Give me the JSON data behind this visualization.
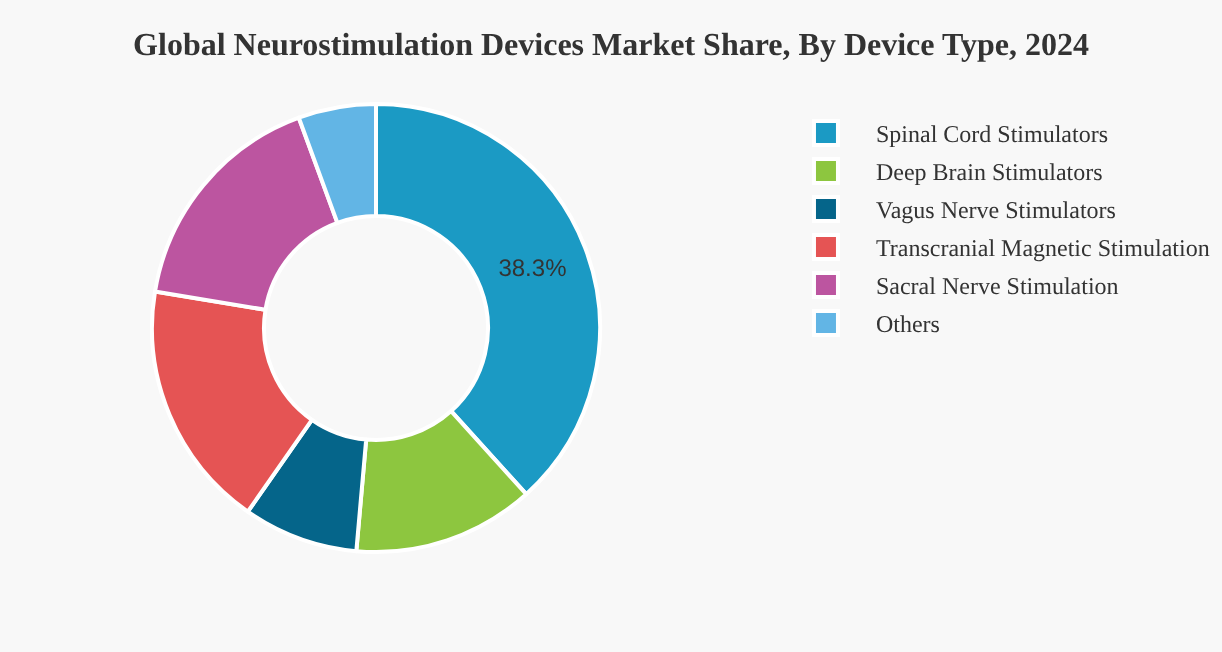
{
  "chart_data": {
    "type": "donut",
    "title": "Global Neurostimulation Devices Market Share, By Device Type, 2024",
    "categories": [
      "Spinal Cord Stimulators",
      "Deep Brain Stimulators",
      "Vagus Nerve Stimulators",
      "Transcranial Magnetic Stimulation",
      "Sacral Nerve Stimulation",
      "Others"
    ],
    "values": [
      38.3,
      13.1,
      8.3,
      17.9,
      16.8,
      5.6
    ],
    "colors": [
      "#1b9ac4",
      "#8dc63f",
      "#05658a",
      "#e55454",
      "#bc55a0",
      "#62b5e5"
    ],
    "value_labels": [
      "38.3%",
      null,
      null,
      null,
      null,
      null
    ],
    "legend": "right"
  }
}
